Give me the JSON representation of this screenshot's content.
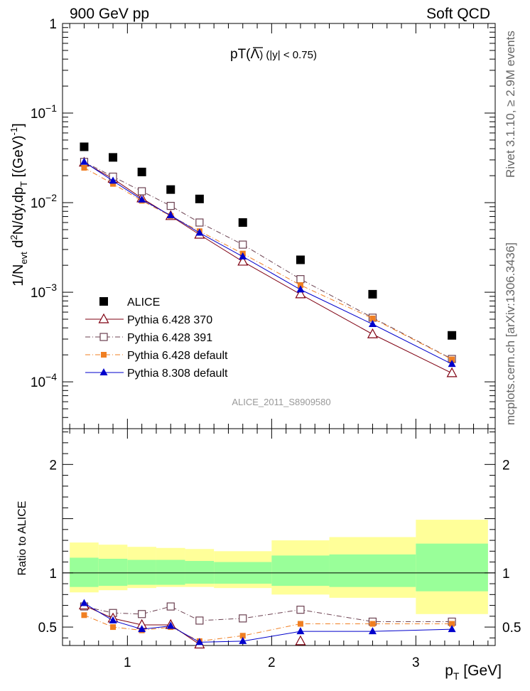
{
  "header": {
    "left": "900 GeV pp",
    "right": "Soft QCD",
    "side_top": "Rivet 3.1.10, ≥ 2.9M events",
    "side_bottom": "mcplots.cern.ch [arXiv:1306.3436]"
  },
  "colors": {
    "ALICE": "#000000",
    "P6_370": "#7f0011",
    "P6_391": "#6b4050",
    "P6_default": "#f07f22",
    "P8_308": "#0000cc",
    "band_inner": "#99ff99",
    "band_outer": "#ffff99"
  },
  "chart_data": [
    {
      "type": "scatter",
      "title": "pT(Λ̄) (|y| < 0.75)",
      "title_main": "pT(",
      "title_sym": "Λ",
      "title_tail": ") (|y| < 0.75)",
      "ylabel": "1/N_evt d²N/dy,dp_T [(GeV)⁻¹]",
      "yscale": "log",
      "ylim": [
        3e-05,
        1.0
      ],
      "xlim": [
        0.55,
        3.55
      ],
      "watermark": "ALICE_2011_S8909580",
      "y_ticks": [
        {
          "v": 1,
          "m": "1",
          "e": ""
        },
        {
          "v": 0.1,
          "m": "10",
          "e": "−1"
        },
        {
          "v": 0.01,
          "m": "10",
          "e": "−2"
        },
        {
          "v": 0.001,
          "m": "10",
          "e": "−3"
        },
        {
          "v": 0.0001,
          "m": "10",
          "e": "−4"
        }
      ],
      "x": [
        0.7,
        0.9,
        1.1,
        1.3,
        1.5,
        1.8,
        2.2,
        2.7,
        3.25
      ],
      "series": [
        {
          "name": "ALICE",
          "key": "ALICE",
          "marker": "square-filled",
          "line": "none",
          "values": [
            0.042,
            0.032,
            0.022,
            0.014,
            0.011,
            0.006,
            0.0023,
            0.00095,
            0.00033
          ]
        },
        {
          "name": "Pythia 6.428 370",
          "key": "P6_370",
          "marker": "triangle-open",
          "line": "solid",
          "values": [
            0.028,
            0.0185,
            0.0112,
            0.0071,
            0.0044,
            0.0022,
            0.00095,
            0.00034,
            0.000125
          ]
        },
        {
          "name": "Pythia 6.428 391",
          "key": "P6_391",
          "marker": "square-open",
          "line": "dashdot",
          "values": [
            0.0285,
            0.0195,
            0.0134,
            0.0092,
            0.006,
            0.0034,
            0.0014,
            0.00052,
            0.00018
          ]
        },
        {
          "name": "Pythia 6.428 default",
          "key": "P6_default",
          "marker": "square-filled-small",
          "line": "dashdot",
          "values": [
            0.0245,
            0.0162,
            0.0105,
            0.0071,
            0.0048,
            0.0027,
            0.0012,
            0.00051,
            0.000178
          ]
        },
        {
          "name": "Pythia 8.308 default",
          "key": "P8_308",
          "marker": "triangle-filled",
          "line": "solid",
          "values": [
            0.0285,
            0.0175,
            0.0108,
            0.0072,
            0.0046,
            0.0025,
            0.00107,
            0.00044,
            0.000158
          ]
        }
      ]
    },
    {
      "type": "line",
      "ylabel": "Ratio to ALICE",
      "xlabel": "p_T [GeV]",
      "ylim": [
        0.33,
        2.33
      ],
      "xlim": [
        0.55,
        3.55
      ],
      "x_ticks": [
        "1",
        "2",
        "3"
      ],
      "y_ticks": [
        "0.5",
        "1",
        "2"
      ],
      "bands": [
        {
          "x0": 0.6,
          "x1": 0.8,
          "inner": [
            0.87,
            1.14
          ],
          "outer": [
            0.82,
            1.28
          ]
        },
        {
          "x0": 0.8,
          "x1": 1.0,
          "inner": [
            0.88,
            1.13
          ],
          "outer": [
            0.84,
            1.26
          ]
        },
        {
          "x0": 1.0,
          "x1": 1.2,
          "inner": [
            0.89,
            1.12
          ],
          "outer": [
            0.86,
            1.24
          ]
        },
        {
          "x0": 1.2,
          "x1": 1.4,
          "inner": [
            0.89,
            1.12
          ],
          "outer": [
            0.87,
            1.23
          ]
        },
        {
          "x0": 1.4,
          "x1": 1.6,
          "inner": [
            0.9,
            1.11
          ],
          "outer": [
            0.87,
            1.22
          ]
        },
        {
          "x0": 1.6,
          "x1": 2.0,
          "inner": [
            0.9,
            1.1
          ],
          "outer": [
            0.86,
            1.2
          ]
        },
        {
          "x0": 2.0,
          "x1": 2.4,
          "inner": [
            0.88,
            1.16
          ],
          "outer": [
            0.8,
            1.3
          ]
        },
        {
          "x0": 2.4,
          "x1": 3.0,
          "inner": [
            0.87,
            1.17
          ],
          "outer": [
            0.77,
            1.33
          ]
        },
        {
          "x0": 3.0,
          "x1": 3.5,
          "inner": [
            0.83,
            1.27
          ],
          "outer": [
            0.62,
            1.49
          ]
        }
      ],
      "x": [
        0.7,
        0.9,
        1.1,
        1.3,
        1.5,
        1.8,
        2.2,
        2.7,
        3.25
      ],
      "series": [
        {
          "name": "Pythia 6.428 391",
          "key": "P6_391",
          "marker": "square-open",
          "line": "dashdot",
          "values": [
            0.69,
            0.63,
            0.62,
            0.69,
            0.56,
            0.58,
            0.66,
            0.55,
            0.55
          ]
        },
        {
          "name": "Pythia 6.428 default",
          "key": "P6_default",
          "marker": "square-filled-small",
          "line": "dashdot",
          "values": [
            0.61,
            0.5,
            0.47,
            0.5,
            0.37,
            0.42,
            0.53,
            0.53,
            0.53
          ]
        },
        {
          "name": "Pythia 6.428 370",
          "key": "P6_370",
          "marker": "triangle-open",
          "line": "solid",
          "values": [
            0.7,
            0.58,
            0.52,
            0.52,
            0.34,
            null,
            0.37,
            null,
            null
          ]
        },
        {
          "name": "Pythia 8.308 default",
          "key": "P8_308",
          "marker": "triangle-filled",
          "line": "solid",
          "values": [
            0.72,
            0.56,
            0.48,
            0.51,
            0.36,
            0.37,
            0.46,
            0.46,
            0.48
          ]
        }
      ]
    }
  ]
}
